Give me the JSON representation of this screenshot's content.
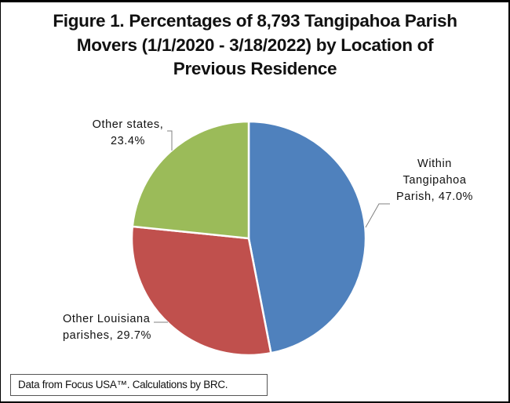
{
  "chart_data": {
    "type": "pie",
    "title": "Figure 1. Percentages of 8,793 Tangipahoa Parish Movers (1/1/2020 - 3/18/2022) by Location of Previous Residence",
    "title_lines": [
      "Figure 1. Percentages of 8,793 Tangipahoa Parish",
      "Movers (1/1/2020 - 3/18/2022) by Location of",
      "Previous Residence"
    ],
    "categories": [
      "Within Tangipahoa Parish",
      "Other Louisiana parishes",
      "Other states"
    ],
    "values": [
      47.0,
      29.7,
      23.4
    ],
    "colors": [
      "#4f81bd",
      "#c0504d",
      "#9bbb59"
    ],
    "data_labels": [
      "Within Tangipahoa Parish, 47.0%",
      "Other Louisiana parishes, 29.7%",
      "Other states, 23.4%"
    ],
    "start_angle": "12 o'clock, clockwise",
    "legend": "none (data labels with leader lines)",
    "total_movers": "8,793",
    "annotation": "Data from Focus USA™. Calculations by BRC."
  },
  "labels": {
    "within_line1": "Within",
    "within_line2": "Tangipahoa",
    "within_line3": "Parish, 47.0%",
    "louisiana_line1": "Other Louisiana",
    "louisiana_line2": "parishes, 29.7%",
    "states_line1": "Other states,",
    "states_line2": "23.4%"
  },
  "footnote": "Data from Focus USA™. Calculations by BRC."
}
